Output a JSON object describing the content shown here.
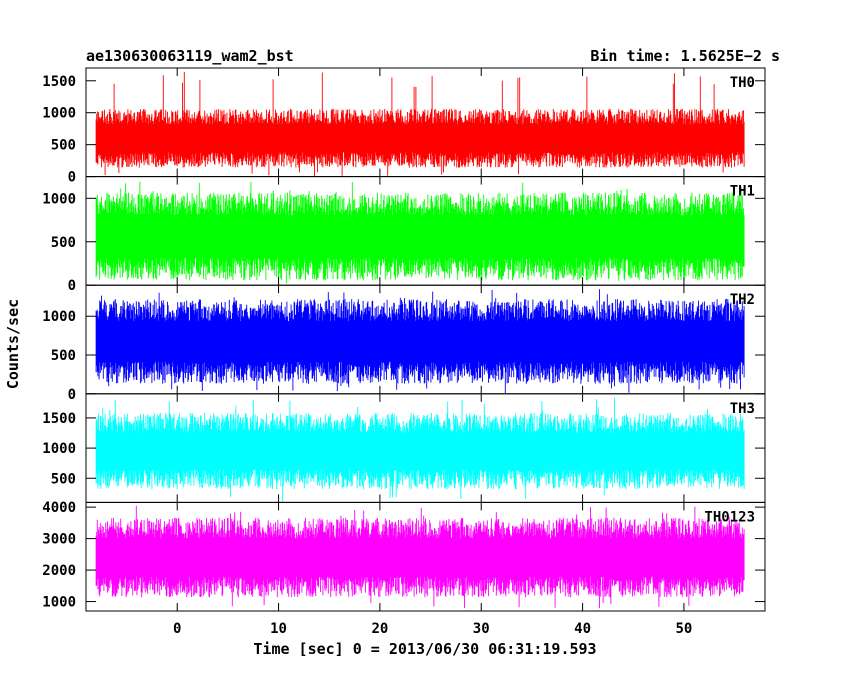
{
  "header": {
    "left_title": "ae130630063119_wam2_bst",
    "right_title": "Bin time: 1.5625E−2 s"
  },
  "chart_data": {
    "type": "line",
    "title": "ae130630063119_wam2_bst",
    "bin_time_label": "Bin time: 1.5625E−2 s",
    "xlabel": "Time [sec] 0 = 2013/06/30 06:31:19.593",
    "ylabel": "Counts/sec",
    "xlim": [
      -9,
      58
    ],
    "x_data_range": [
      -8,
      56
    ],
    "x_ticks": [
      0,
      10,
      20,
      30,
      40,
      50
    ],
    "grid": false,
    "panels": [
      {
        "name": "TH0",
        "color": "#ff0000",
        "ylim": [
          0,
          1700
        ],
        "y_ticks": [
          0,
          500,
          1000,
          1500
        ],
        "typical_range": [
          200,
          1000
        ],
        "peak": 1650
      },
      {
        "name": "TH1",
        "color": "#00ff00",
        "ylim": [
          0,
          1250
        ],
        "y_ticks": [
          0,
          500,
          1000
        ],
        "typical_range": [
          120,
          1000
        ],
        "peak": 1200
      },
      {
        "name": "TH2",
        "color": "#0000ff",
        "ylim": [
          0,
          1400
        ],
        "y_ticks": [
          0,
          500,
          1000
        ],
        "typical_range": [
          200,
          1150
        ],
        "peak": 1350
      },
      {
        "name": "TH3",
        "color": "#00ffff",
        "ylim": [
          100,
          1900
        ],
        "y_ticks": [
          500,
          1000,
          1500
        ],
        "typical_range": [
          400,
          1500
        ],
        "peak": 1850
      },
      {
        "name": "TH0123",
        "color": "#ff00ff",
        "ylim": [
          700,
          4150
        ],
        "y_ticks": [
          1000,
          2000,
          3000,
          4000
        ],
        "typical_range": [
          1300,
          3500
        ],
        "peak": 4100
      }
    ]
  }
}
